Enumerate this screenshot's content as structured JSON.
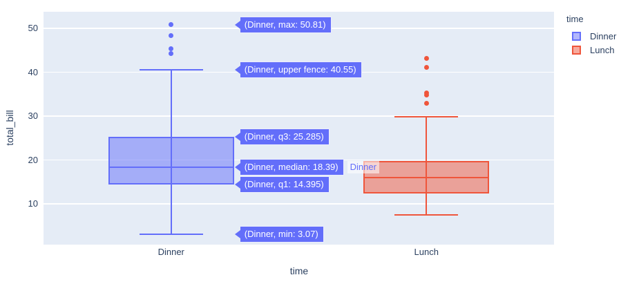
{
  "legend": {
    "title": "time",
    "items": [
      {
        "label": "Dinner",
        "color": "#636efa"
      },
      {
        "label": "Lunch",
        "color": "#ef553b"
      }
    ]
  },
  "chart_data": {
    "type": "box",
    "title": "",
    "xlabel": "time",
    "ylabel": "total_bill",
    "categories": [
      "Dinner",
      "Lunch"
    ],
    "yticks": [
      10,
      20,
      30,
      40,
      50
    ],
    "ylim": [
      0.7,
      53.8
    ],
    "grid": true,
    "legend_position": "top-right",
    "plot_bgcolor": "#e5ecf6",
    "grid_color": "#ffffff",
    "text_color": "#2a3f5f",
    "series": [
      {
        "name": "Dinner",
        "color": "#636efa",
        "min": 3.07,
        "q1": 14.395,
        "median": 18.39,
        "q3": 25.285,
        "upper_fence": 40.55,
        "max": 50.81,
        "outliers": [
          50.81,
          48.33,
          45.35,
          44.3
        ]
      },
      {
        "name": "Lunch",
        "color": "#ef553b",
        "min": 7.5,
        "q1": 12.4,
        "median": 16.0,
        "q3": 19.8,
        "upper_fence": 29.8,
        "max": 43.11,
        "outliers": [
          43.11,
          41.19,
          35.26,
          34.8,
          32.9
        ]
      }
    ],
    "hover_labels": [
      {
        "text": "(Dinner, max: 50.81)",
        "value": 50.81
      },
      {
        "text": "(Dinner, upper fence: 40.55)",
        "value": 40.55
      },
      {
        "text": "(Dinner, q3: 25.285)",
        "value": 25.285
      },
      {
        "text": "(Dinner, median: 18.39)",
        "value": 18.39,
        "suffix": "Dinner"
      },
      {
        "text": "(Dinner, q1: 14.395)",
        "value": 14.395
      },
      {
        "text": "(Dinner, min: 3.07)",
        "value": 3.07
      }
    ]
  }
}
